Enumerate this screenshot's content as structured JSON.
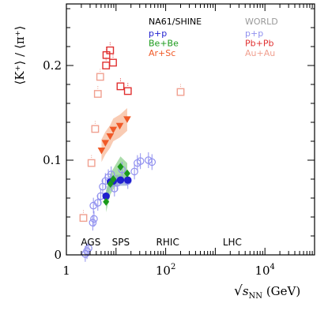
{
  "chart_data": {
    "type": "scatter",
    "xscale": "log",
    "xlim": [
      1,
      100000
    ],
    "ylim": [
      0,
      0.265
    ],
    "xlabel_prefix": "√",
    "xlabel_var": "s",
    "xlabel_sub": "NN",
    "xlabel_unit": " (GeV)",
    "ylabel": "⟨K⁺⟩ / ⟨π⁺⟩",
    "yticks": [
      {
        "v": 0,
        "label": "0"
      },
      {
        "v": 0.1,
        "label": "0.1"
      },
      {
        "v": 0.2,
        "label": "0.2"
      }
    ],
    "xticks": [
      {
        "v": 1,
        "label": "1",
        "sup": ""
      },
      {
        "v": 100,
        "label": "10",
        "sup": "2"
      },
      {
        "v": 10000,
        "label": "10",
        "sup": "4"
      }
    ],
    "energy_labels": [
      {
        "text": "AGS",
        "x": 3.1
      },
      {
        "text": "SPS",
        "x": 12.5
      },
      {
        "text": "RHIC",
        "x": 110
      },
      {
        "text": "LHC",
        "x": 2200
      }
    ],
    "legend": {
      "left_title": "NA61/SHINE",
      "right_title": "WORLD",
      "left": [
        {
          "label": "p+p",
          "color": "#1f1fcf"
        },
        {
          "label": "Be+Be",
          "color": "#1a9a1a"
        },
        {
          "label": "Ar+Sc",
          "color": "#f05a28"
        }
      ],
      "right": [
        {
          "label": "p+p",
          "color": "#9090ef"
        },
        {
          "label": "Pb+Pb",
          "color": "#e03030"
        },
        {
          "label": "Au+Au",
          "color": "#f0a090"
        }
      ],
      "title_colors": {
        "left": "#000000",
        "right": "#999999"
      }
    },
    "series": [
      {
        "name": "p+p",
        "group": "WORLD",
        "marker": "circle-open",
        "color": "#9090ef",
        "points": [
          {
            "x": 2.4,
            "y": 0.001
          },
          {
            "x": 2.6,
            "y": 0.004
          },
          {
            "x": 2.8,
            "y": 0.007
          },
          {
            "x": 3.4,
            "y": 0.034
          },
          {
            "x": 3.6,
            "y": 0.038
          },
          {
            "x": 3.5,
            "y": 0.052
          },
          {
            "x": 4.3,
            "y": 0.055
          },
          {
            "x": 4.9,
            "y": 0.062
          },
          {
            "x": 5.4,
            "y": 0.072
          },
          {
            "x": 6.1,
            "y": 0.078
          },
          {
            "x": 7.0,
            "y": 0.082
          },
          {
            "x": 8.0,
            "y": 0.085
          },
          {
            "x": 9.3,
            "y": 0.07
          },
          {
            "x": 10.5,
            "y": 0.076
          },
          {
            "x": 13.2,
            "y": 0.09
          },
          {
            "x": 17.3,
            "y": 0.078
          },
          {
            "x": 23.5,
            "y": 0.088
          },
          {
            "x": 27.0,
            "y": 0.097
          },
          {
            "x": 31.0,
            "y": 0.099
          },
          {
            "x": 45.0,
            "y": 0.1
          },
          {
            "x": 53.0,
            "y": 0.098
          }
        ]
      },
      {
        "name": "p+p",
        "group": "NA61/SHINE",
        "marker": "circle-filled",
        "color": "#1f1fcf",
        "points": [
          {
            "x": 6.3,
            "y": 0.062
          },
          {
            "x": 7.7,
            "y": 0.077
          },
          {
            "x": 8.8,
            "y": 0.078
          },
          {
            "x": 12.3,
            "y": 0.079
          },
          {
            "x": 17.3,
            "y": 0.079
          }
        ]
      },
      {
        "name": "Be+Be",
        "group": "NA61/SHINE",
        "marker": "diamond-filled",
        "color": "#1a9a1a",
        "points": [
          {
            "x": 6.3,
            "y": 0.056
          },
          {
            "x": 7.7,
            "y": 0.075
          },
          {
            "x": 8.8,
            "y": 0.08
          },
          {
            "x": 12.3,
            "y": 0.093
          },
          {
            "x": 16.8,
            "y": 0.086
          }
        ]
      },
      {
        "name": "Ar+Sc",
        "group": "NA61/SHINE",
        "marker": "triangle-down-filled",
        "color": "#f05a28",
        "points": [
          {
            "x": 5.1,
            "y": 0.11
          },
          {
            "x": 6.1,
            "y": 0.118
          },
          {
            "x": 7.6,
            "y": 0.125
          },
          {
            "x": 8.8,
            "y": 0.132
          },
          {
            "x": 11.9,
            "y": 0.136
          },
          {
            "x": 16.8,
            "y": 0.143
          }
        ]
      },
      {
        "name": "Pb+Pb",
        "group": "WORLD",
        "marker": "square-open",
        "color": "#e03030",
        "points": [
          {
            "x": 6.3,
            "y": 0.2
          },
          {
            "x": 6.4,
            "y": 0.211
          },
          {
            "x": 7.6,
            "y": 0.216
          },
          {
            "x": 8.7,
            "y": 0.203
          },
          {
            "x": 12.3,
            "y": 0.178
          },
          {
            "x": 17.3,
            "y": 0.173
          }
        ]
      },
      {
        "name": "Au+Au",
        "group": "WORLD",
        "marker": "square-open",
        "color": "#f0a090",
        "points": [
          {
            "x": 2.2,
            "y": 0.039
          },
          {
            "x": 3.2,
            "y": 0.097
          },
          {
            "x": 3.8,
            "y": 0.133
          },
          {
            "x": 4.3,
            "y": 0.17
          },
          {
            "x": 4.8,
            "y": 0.188
          },
          {
            "x": 200,
            "y": 0.172
          }
        ]
      }
    ]
  }
}
